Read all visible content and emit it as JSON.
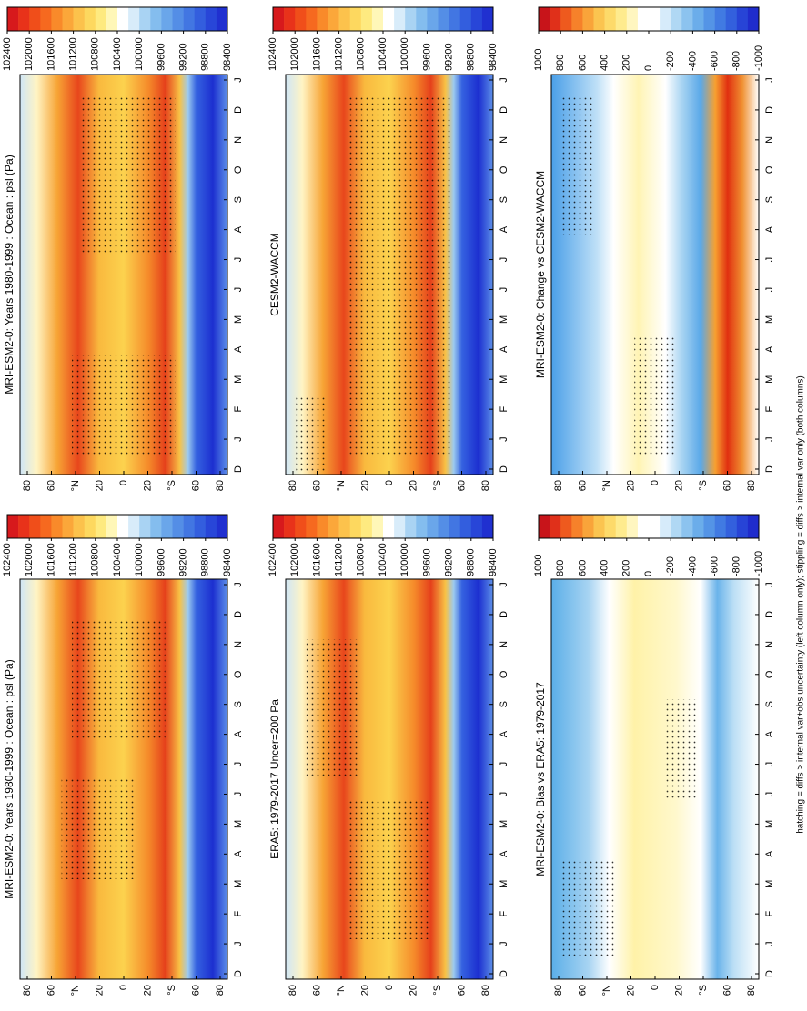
{
  "caption": "hatching = diffs > internal var+obs uncertainty (left column only); stippling = diffs > internal var only (both columns)",
  "lat_labels": [
    "80",
    "60",
    "°N",
    "20",
    "0",
    "20",
    "°S",
    "60",
    "80"
  ],
  "month_labels": [
    "D",
    "J",
    "F",
    "M",
    "A",
    "M",
    "J",
    "J",
    "A",
    "S",
    "O",
    "N",
    "D",
    "J"
  ],
  "panels": [
    {
      "title": "MRI-ESM2-0: Years 1980-1999 : Ocean : psl (Pa)",
      "colorbar_ticks": [
        102400,
        102000,
        101600,
        101200,
        100800,
        100400,
        100000,
        99600,
        99200,
        98800,
        98400
      ]
    },
    {
      "title": "MRI-ESM2-0: Years 1980-1999 : Ocean : psl (Pa)",
      "colorbar_ticks": [
        102400,
        102000,
        101600,
        101200,
        100800,
        100400,
        100000,
        99600,
        99200,
        98800,
        98400
      ]
    },
    {
      "title": "ERA5: 1979-2017 Uncer=200 Pa",
      "colorbar_ticks": [
        102400,
        102000,
        101600,
        101200,
        100800,
        100400,
        100000,
        99600,
        99200,
        98800,
        98400
      ]
    },
    {
      "title": "CESM2-WACCM",
      "colorbar_ticks": [
        102400,
        102000,
        101600,
        101200,
        100800,
        100400,
        100000,
        99600,
        99200,
        98800,
        98400
      ]
    },
    {
      "title": "MRI-ESM2-0: Bias vs ERA5: 1979-2017",
      "colorbar_ticks": [
        1000,
        800,
        600,
        400,
        200,
        0,
        -200,
        -400,
        -600,
        -800,
        -1000
      ]
    },
    {
      "title": "MRI-ESM2-0: Change vs CESM2-WACCM",
      "colorbar_ticks": [
        1000,
        800,
        600,
        400,
        200,
        0,
        -200,
        -400,
        -600,
        -800,
        -1000
      ]
    }
  ]
}
